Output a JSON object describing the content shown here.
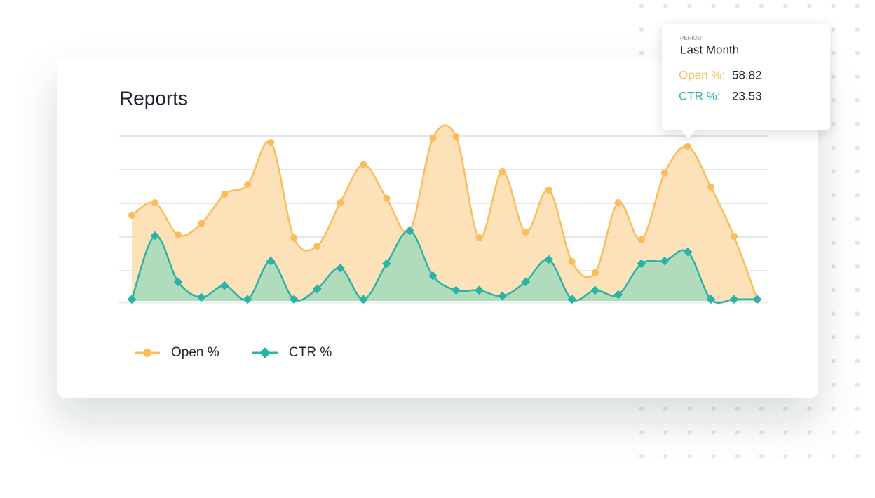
{
  "chart_data": {
    "type": "area",
    "title": "Reports",
    "categories": [
      null,
      null,
      null,
      null,
      null,
      null,
      null,
      null,
      null,
      null,
      null,
      null,
      null,
      null,
      null,
      null,
      null,
      null,
      null,
      null,
      null,
      null,
      null,
      null,
      null,
      null,
      null,
      null
    ],
    "series": [
      {
        "name": "Open %",
        "color": "#fbbd5c",
        "fill": "#fddcab",
        "values": [
          26.5,
          30.2,
          20.6,
          24.0,
          32.7,
          35.6,
          48.1,
          19.8,
          17.3,
          30.2,
          41.5,
          31.5,
          21.9,
          49.4,
          49.8,
          19.8,
          39.4,
          21.5,
          34.0,
          12.7,
          9.4,
          30.2,
          19.2,
          39.0,
          46.9,
          34.8,
          20.2,
          1.5
        ]
      },
      {
        "name": "CTR %",
        "color": "#2ab3a6",
        "fill": "#a9dcbc",
        "values": [
          1.5,
          20.4,
          6.7,
          2.1,
          5.6,
          1.5,
          12.9,
          1.5,
          4.6,
          10.8,
          1.5,
          12.1,
          21.9,
          8.5,
          4.2,
          4.2,
          2.5,
          6.7,
          13.3,
          1.5,
          4.2,
          2.9,
          12.1,
          12.9,
          15.6,
          1.5,
          1.5,
          1.5
        ]
      }
    ],
    "ylim": [
      0,
      50
    ],
    "yticks": [
      10,
      20,
      30,
      40,
      50
    ],
    "grid": true,
    "legend": "bottom-left",
    "tooltip": {
      "period": "PERIOD",
      "label": "Last Month",
      "rows": [
        {
          "name": "Open %:",
          "value": "58.82"
        },
        {
          "name": "CTR %:",
          "value": "23.53"
        }
      ]
    }
  }
}
